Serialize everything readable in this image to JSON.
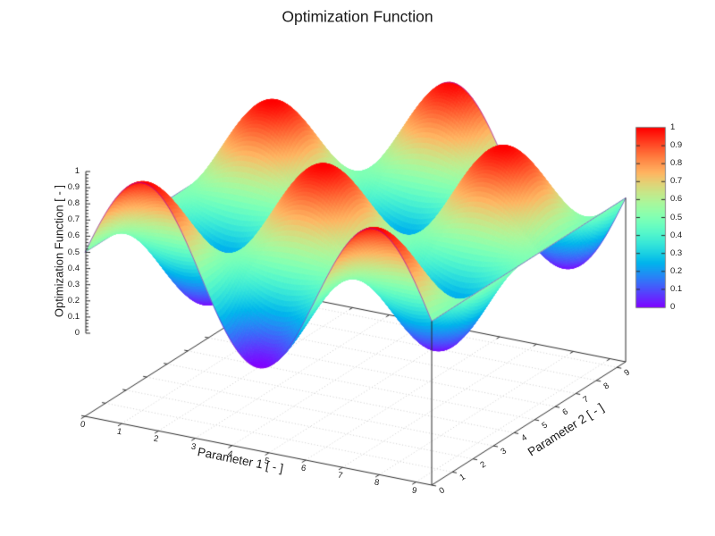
{
  "title": "Optimization Function",
  "axes": {
    "x": {
      "label": "Parameter 1 [ - ]",
      "tick_labels": [
        "0",
        "1",
        "2",
        "3",
        "4",
        "5",
        "6",
        "7",
        "8",
        "9"
      ],
      "range": [
        0,
        9.42478
      ]
    },
    "y": {
      "label": "Parameter 2 [ - ]",
      "tick_labels": [
        "0",
        "1",
        "2",
        "3",
        "4",
        "5",
        "6",
        "7",
        "8",
        "9"
      ],
      "range": [
        0,
        9.42478
      ]
    },
    "z": {
      "label": "Optimization Function [ - ]",
      "tick_labels": [
        "0",
        "0.1",
        "0.2",
        "0.3",
        "0.4",
        "0.5",
        "0.6",
        "0.7",
        "0.8",
        "0.9",
        "1"
      ],
      "range": [
        0,
        1
      ]
    }
  },
  "colorbar": {
    "tick_labels": [
      "0",
      "0.1",
      "0.2",
      "0.3",
      "0.4",
      "0.5",
      "0.6",
      "0.7",
      "0.8",
      "0.9",
      "1"
    ],
    "range": [
      0,
      1
    ],
    "colormap": "rainbow",
    "stops": [
      {
        "v": 0.0,
        "color": "#8000ff"
      },
      {
        "v": 0.1,
        "color": "#4d4ffc"
      },
      {
        "v": 0.25,
        "color": "#00b5ec"
      },
      {
        "v": 0.4,
        "color": "#4df2ce"
      },
      {
        "v": 0.5,
        "color": "#80ffb5"
      },
      {
        "v": 0.6,
        "color": "#b2f296"
      },
      {
        "v": 0.75,
        "color": "#ffb462"
      },
      {
        "v": 0.9,
        "color": "#ff4f28"
      },
      {
        "v": 1.0,
        "color": "#ff0000"
      }
    ]
  },
  "chart_data": {
    "type": "3d-surface",
    "title": "Optimization Function",
    "xlabel": "Parameter 1 [ - ]",
    "ylabel": "Parameter 2 [ - ]",
    "zlabel": "Optimization Function [ - ]",
    "x_range": [
      0,
      9.42478
    ],
    "y_range": [
      0,
      9.42478
    ],
    "z_range": [
      0,
      1
    ],
    "x_ticks": [
      0,
      1,
      2,
      3,
      4,
      5,
      6,
      7,
      8,
      9
    ],
    "y_ticks": [
      0,
      1,
      2,
      3,
      4,
      5,
      6,
      7,
      8,
      9
    ],
    "z_ticks": [
      0,
      0.1,
      0.2,
      0.3,
      0.4,
      0.5,
      0.6,
      0.7,
      0.8,
      0.9,
      1
    ],
    "function": "f(x,y) = 0.5 + 0.5*sin(x)*cos(y)",
    "surface_params": {
      "offset": 0.5,
      "amplitude": 0.5
    },
    "colormap": "rainbow",
    "grid_on": true,
    "base_plane_z_offset": -0.5,
    "x_samples": [
      0,
      1,
      2,
      3,
      4,
      5,
      6,
      7,
      8,
      9
    ],
    "y_samples": [
      0,
      1,
      2,
      3,
      4,
      5,
      6,
      7,
      8,
      9
    ],
    "grid_values": [
      [
        0.5,
        0.5,
        0.5,
        0.5,
        0.5,
        0.5,
        0.5,
        0.5,
        0.5,
        0.5
      ],
      [
        0.921,
        0.727,
        0.325,
        0.083,
        0.225,
        0.62,
        0.904,
        0.817,
        0.439,
        0.117
      ],
      [
        0.955,
        0.746,
        0.311,
        0.05,
        0.203,
        0.629,
        0.936,
        0.843,
        0.434,
        0.086
      ],
      [
        0.571,
        0.538,
        0.471,
        0.43,
        0.454,
        0.52,
        0.568,
        0.553,
        0.49,
        0.436
      ],
      [
        0.122,
        0.296,
        0.657,
        0.875,
        0.748,
        0.393,
        0.137,
        0.215,
        0.555,
        0.845
      ],
      [
        0.021,
        0.241,
        0.699,
        0.975,
        0.814,
        0.364,
        0.04,
        0.138,
        0.57,
        0.937
      ],
      [
        0.361,
        0.425,
        0.558,
        0.638,
        0.591,
        0.46,
        0.366,
        0.395,
        0.52,
        0.627
      ],
      [
        0.829,
        0.677,
        0.363,
        0.175,
        0.285,
        0.593,
        0.815,
        0.748,
        0.452,
        0.201
      ],
      [
        0.995,
        0.767,
        0.294,
        0.01,
        0.177,
        0.64,
        0.975,
        0.873,
        0.428,
        0.049
      ],
      [
        0.706,
        0.611,
        0.414,
        0.296,
        0.365,
        0.559,
        0.698,
        0.655,
        0.47,
        0.312
      ]
    ]
  }
}
